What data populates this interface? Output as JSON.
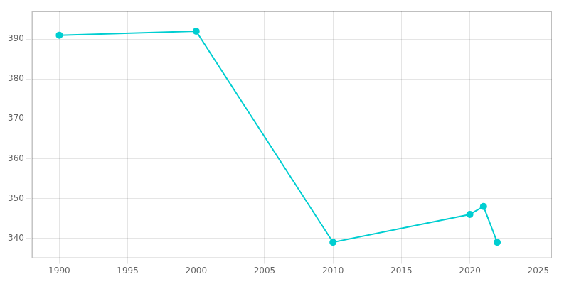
{
  "chart_data": {
    "type": "line",
    "x": [
      1990,
      2000,
      2010,
      2020,
      2021,
      2022
    ],
    "values": [
      391,
      392,
      339,
      346,
      348,
      339
    ],
    "color": "#00CED1",
    "marker": "circle",
    "xlim": [
      1988,
      2026
    ],
    "xticks": [
      1990,
      1995,
      2000,
      2005,
      2010,
      2015,
      2020,
      2025
    ],
    "ylim": [
      335,
      397
    ],
    "yticks": [
      340,
      350,
      360,
      370,
      380,
      390
    ],
    "grid": true
  }
}
